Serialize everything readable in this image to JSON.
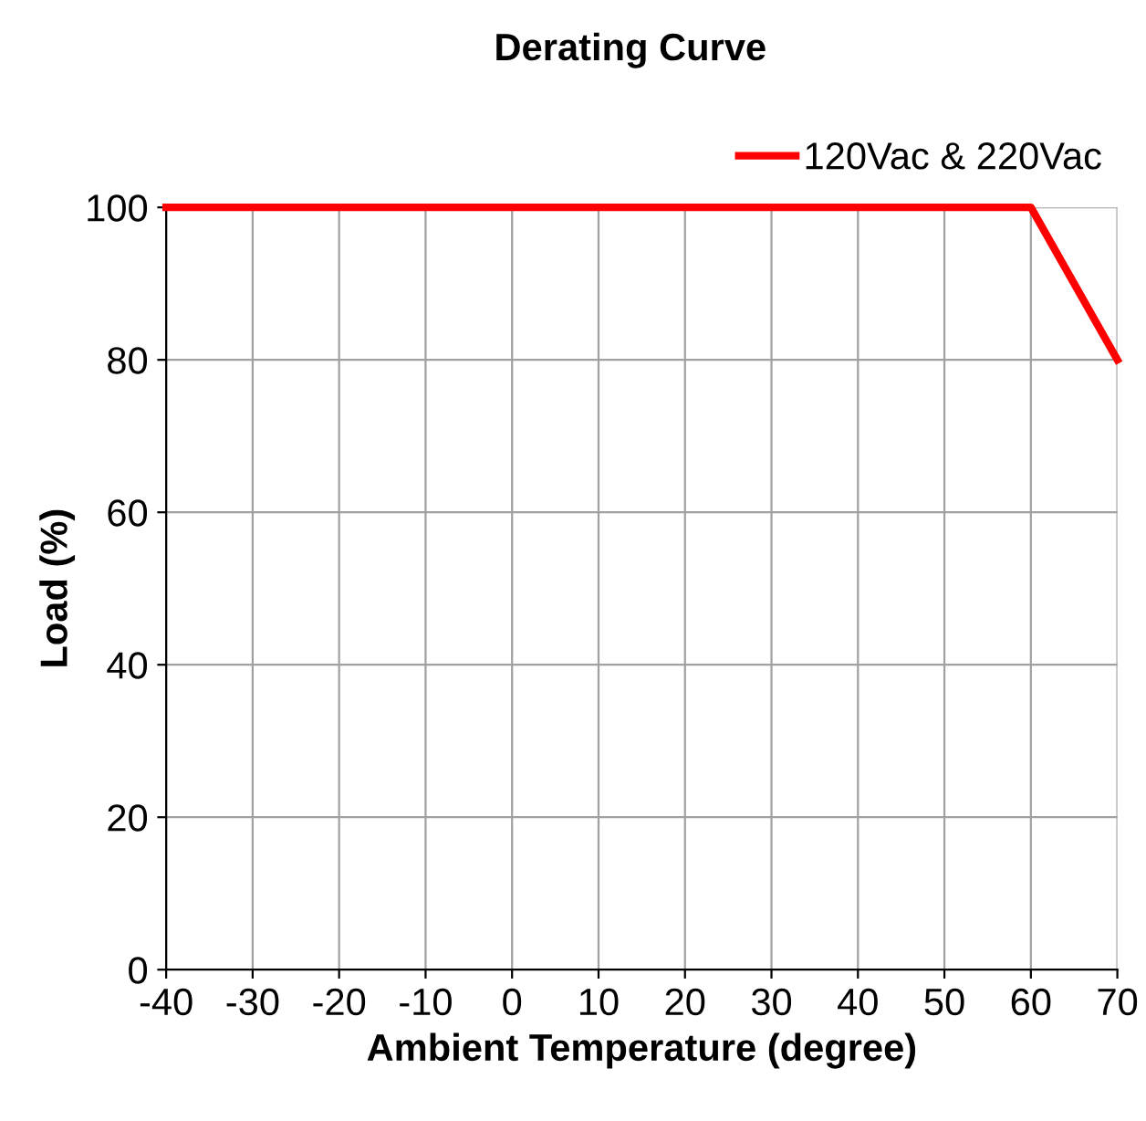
{
  "chart_data": {
    "type": "line",
    "title": "Derating Curve",
    "xlabel": "Ambient Temperature (degree)",
    "ylabel": "Load (%)",
    "x": [
      -40,
      60,
      70
    ],
    "series": [
      {
        "name": "120Vac & 220Vac",
        "color": "#ff0000",
        "values": [
          100,
          100,
          80
        ]
      }
    ],
    "xlim": [
      -40,
      70
    ],
    "xticks": [
      -40,
      -30,
      -20,
      -10,
      0,
      10,
      20,
      30,
      40,
      50,
      60,
      70
    ],
    "ylim": [
      0,
      100
    ],
    "yticks": [
      0,
      20,
      40,
      60,
      80,
      100
    ],
    "grid": true,
    "legend": "top right",
    "line_style": "solid"
  }
}
